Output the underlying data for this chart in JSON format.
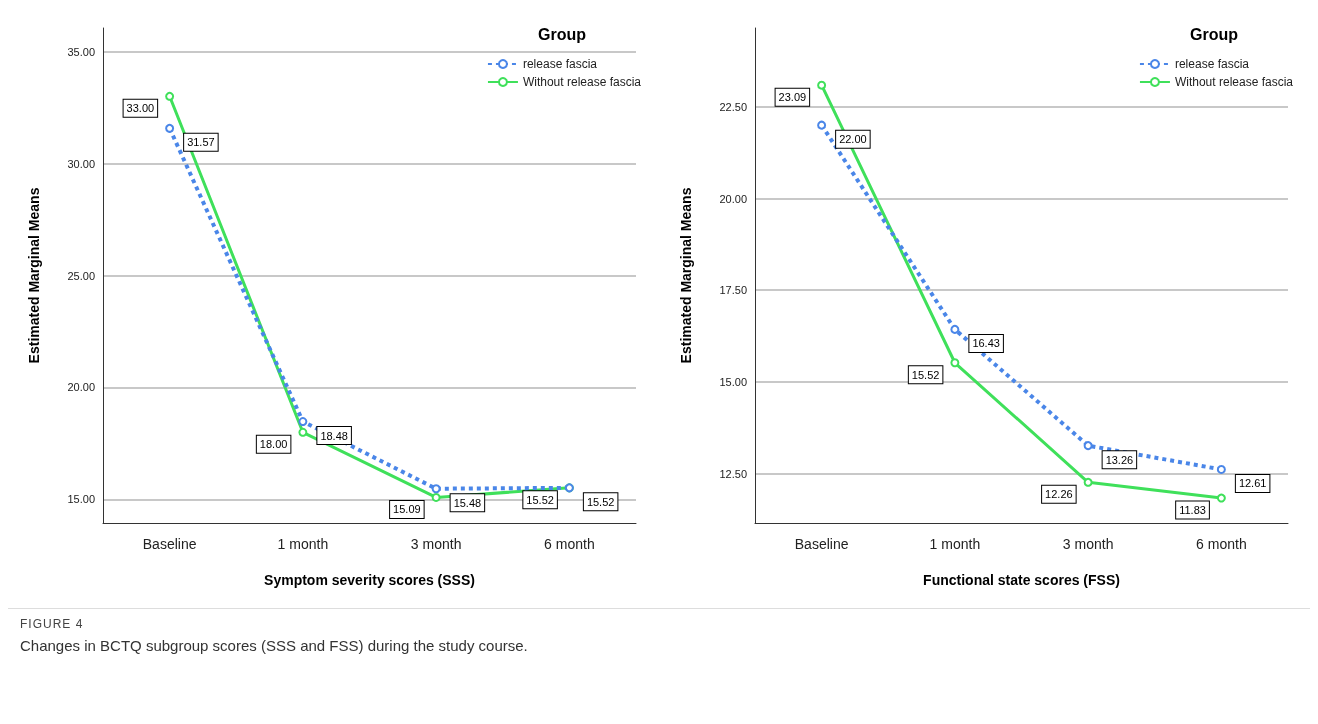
{
  "chart_data": [
    {
      "type": "line",
      "xlabel": "Symptom severity scores (SSS)",
      "ylabel": "Estimated Marginal Means",
      "legend_title": "Group",
      "categories": [
        "Baseline",
        "1 month",
        "3 month",
        "6 month"
      ],
      "series": [
        {
          "name": "release fascia",
          "color": "#4a86e8",
          "line_style": "dotted",
          "values": [
            31.57,
            18.48,
            15.48,
            15.52
          ],
          "value_labels": [
            "31.57",
            "18.48",
            "15.48",
            "15.52"
          ]
        },
        {
          "name": "Without release fascia",
          "color": "#3fe05a",
          "line_style": "solid",
          "values": [
            33.0,
            18.0,
            15.09,
            15.52
          ],
          "value_labels": [
            "33.00",
            "18.00",
            "15.09",
            "15.52"
          ]
        }
      ],
      "ylim": [
        13.95,
        36.05
      ],
      "yticks": [
        {
          "value": 15,
          "label": "15.00"
        },
        {
          "value": 20,
          "label": "20.00"
        },
        {
          "value": 25,
          "label": "25.00"
        },
        {
          "value": 30,
          "label": "30.00"
        },
        {
          "value": 35,
          "label": "35.00"
        }
      ],
      "grid": "y",
      "legend": "top right",
      "marker": "circle",
      "annotations": [
        "FIGURE 4",
        "Changes in BCTQ subgroup scores (SSS and FSS) during the study course."
      ]
    },
    {
      "type": "line",
      "xlabel": "Functional state scores (FSS)",
      "ylabel": "Estimated Marginal Means",
      "legend_title": "Group",
      "categories": [
        "Baseline",
        "1 month",
        "3 month",
        "6 month"
      ],
      "series": [
        {
          "name": "release fascia",
          "color": "#4a86e8",
          "line_style": "dotted",
          "values": [
            22.0,
            16.43,
            13.26,
            12.61
          ],
          "value_labels": [
            "22.00",
            "16.43",
            "13.26",
            "12.61"
          ]
        },
        {
          "name": "Without release fascia",
          "color": "#3fe05a",
          "line_style": "solid",
          "values": [
            23.09,
            15.52,
            12.26,
            11.83
          ],
          "value_labels": [
            "23.09",
            "15.52",
            "12.26",
            "11.83"
          ]
        }
      ],
      "ylim": [
        11.15,
        24.65
      ],
      "yticks": [
        {
          "value": 12.5,
          "label": "12.50"
        },
        {
          "value": 15,
          "label": "15.00"
        },
        {
          "value": 17.5,
          "label": "17.50"
        },
        {
          "value": 20,
          "label": "20.00"
        },
        {
          "value": 22.5,
          "label": "22.50"
        }
      ],
      "grid": "y",
      "legend": "top right",
      "marker": "circle"
    }
  ]
}
